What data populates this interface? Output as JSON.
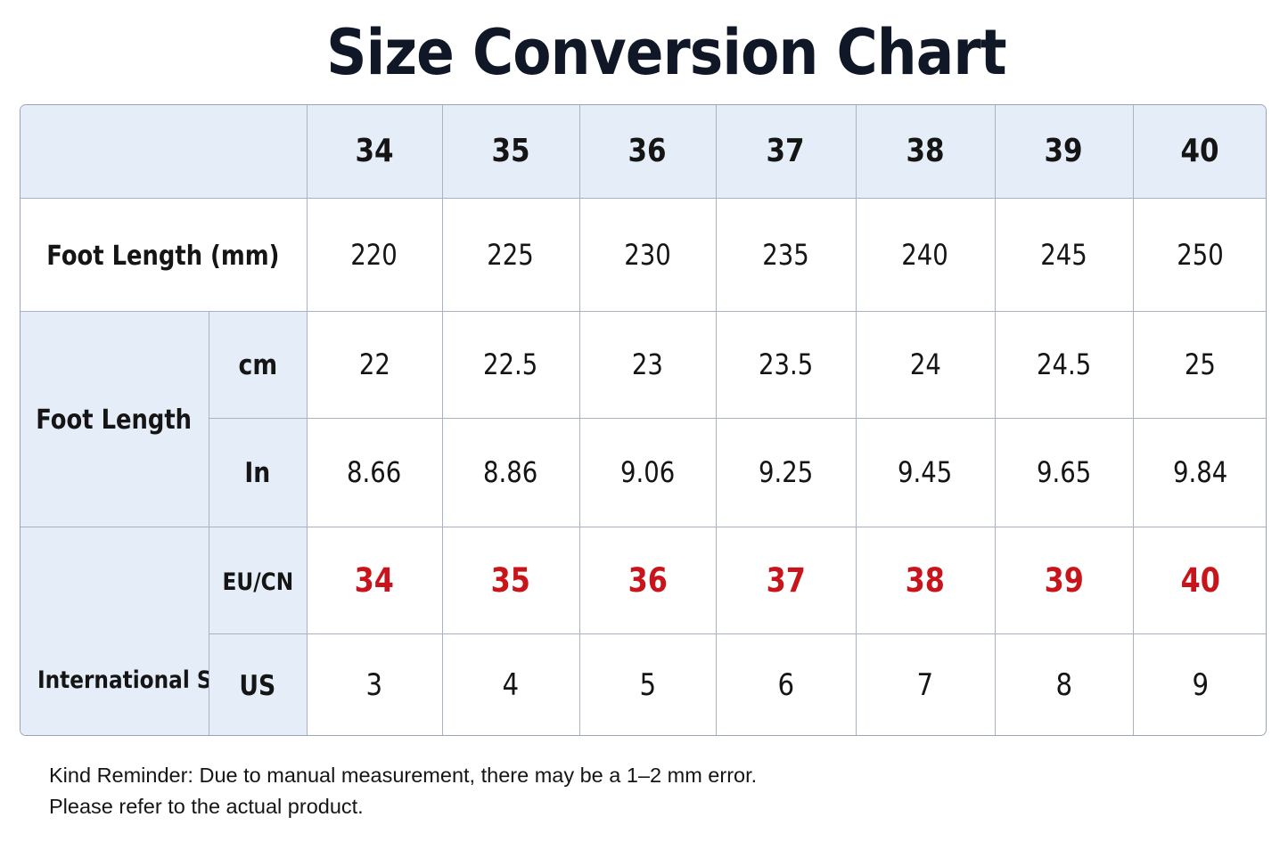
{
  "title": "Size Conversion Chart",
  "header": {
    "sizes": [
      "34",
      "35",
      "36",
      "37",
      "38",
      "39",
      "40"
    ]
  },
  "rows": {
    "foot_length_mm": {
      "label": "Foot Length (mm)",
      "values": [
        "220",
        "225",
        "230",
        "235",
        "240",
        "245",
        "250"
      ]
    },
    "foot_length": {
      "label": "Foot Length",
      "cm": {
        "label": "cm",
        "values": [
          "22",
          "22.5",
          "23",
          "23.5",
          "24",
          "24.5",
          "25"
        ]
      },
      "in": {
        "label": "In",
        "values": [
          "8.66",
          "8.86",
          "9.06",
          "9.25",
          "9.45",
          "9.65",
          "9.84"
        ]
      }
    },
    "international_size": {
      "label": "International Size",
      "eu_cn": {
        "label": "EU/CN",
        "values": [
          "34",
          "35",
          "36",
          "37",
          "38",
          "39",
          "40"
        ]
      },
      "us": {
        "label": "US",
        "values": [
          "3",
          "4",
          "5",
          "6",
          "7",
          "8",
          "9"
        ]
      }
    }
  },
  "note": {
    "line1": "Kind Reminder: Due to manual measurement, there may be a 1–2 mm error.",
    "line2": "Please refer to the actual product."
  },
  "colors": {
    "header_fill": "#e4edf8",
    "accent_red": "#c8141b",
    "border": "#a9b1c2"
  }
}
